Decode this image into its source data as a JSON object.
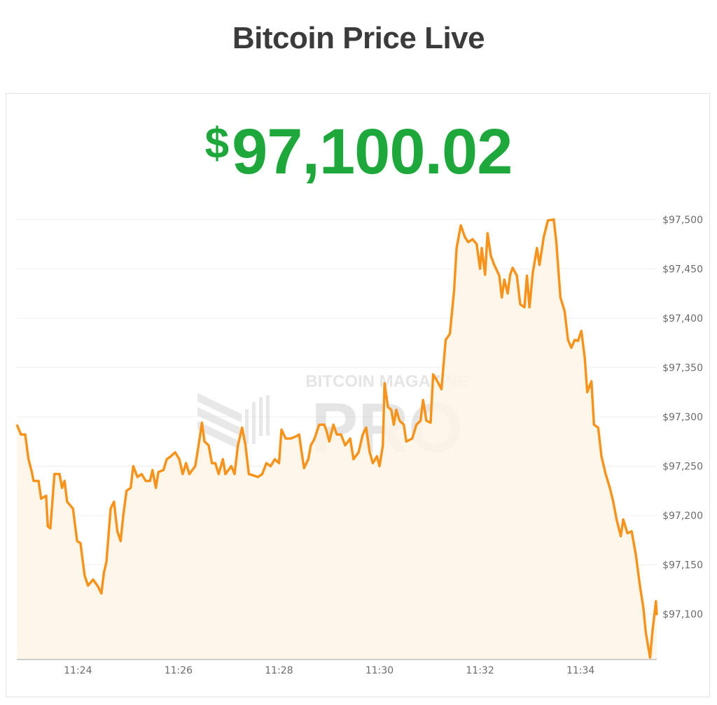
{
  "header": {
    "title": "Bitcoin Price Live"
  },
  "price": {
    "currency_symbol": "$",
    "value": "97,100.02",
    "color": "#1ea83c"
  },
  "watermark": {
    "line1": "BITCOIN MAGAZINE",
    "line2": "PRO"
  },
  "chart_data": {
    "type": "area",
    "title": "",
    "xlabel": "",
    "ylabel": "",
    "line_color": "#f7931a",
    "fill_color": "#fdf5e8",
    "grid": true,
    "legend": "none",
    "xlim": [
      "11:22:47",
      "11:35:31"
    ],
    "ylim": [
      97054,
      97514
    ],
    "x_ticks": [
      "11:24",
      "11:26",
      "11:28",
      "11:30",
      "11:32",
      "11:34"
    ],
    "y_ticks": [
      97100,
      97150,
      97200,
      97250,
      97300,
      97350,
      97400,
      97450,
      97500
    ],
    "y_tick_labels": [
      "$97,100",
      "$97,150",
      "$97,200",
      "$97,250",
      "$97,300",
      "$97,350",
      "$97,400",
      "$97,450",
      "$97,500"
    ],
    "y_axis_position": "right",
    "series": [
      {
        "points": [
          [
            "11:22:47",
            97292
          ],
          [
            "11:22:52",
            97282
          ],
          [
            "11:22:57",
            97282
          ],
          [
            "11:23:01",
            97257
          ],
          [
            "11:23:05",
            97244
          ],
          [
            "11:23:07",
            97235
          ],
          [
            "11:23:13",
            97235
          ],
          [
            "11:23:16",
            97217
          ],
          [
            "11:23:22",
            97220
          ],
          [
            "11:23:24",
            97189
          ],
          [
            "11:23:27",
            97187
          ],
          [
            "11:23:32",
            97242
          ],
          [
            "11:23:38",
            97242
          ],
          [
            "11:23:41",
            97228
          ],
          [
            "11:23:44",
            97235
          ],
          [
            "11:23:47",
            97214
          ],
          [
            "11:23:54",
            97207
          ],
          [
            "11:23:59",
            97174
          ],
          [
            "11:24:03",
            97172
          ],
          [
            "11:24:08",
            97139
          ],
          [
            "11:24:12",
            97129
          ],
          [
            "11:24:18",
            97135
          ],
          [
            "11:24:24",
            97128
          ],
          [
            "11:24:28",
            97121
          ],
          [
            "11:24:31",
            97142
          ],
          [
            "11:24:34",
            97153
          ],
          [
            "11:24:39",
            97207
          ],
          [
            "11:24:43",
            97214
          ],
          [
            "11:24:47",
            97184
          ],
          [
            "11:24:51",
            97174
          ],
          [
            "11:24:54",
            97199
          ],
          [
            "11:24:58",
            97225
          ],
          [
            "11:25:03",
            97228
          ],
          [
            "11:25:06",
            97250
          ],
          [
            "11:25:11",
            97239
          ],
          [
            "11:25:16",
            97242
          ],
          [
            "11:25:21",
            97235
          ],
          [
            "11:25:26",
            97235
          ],
          [
            "11:25:29",
            97246
          ],
          [
            "11:25:33",
            97228
          ],
          [
            "11:25:36",
            97244
          ],
          [
            "11:25:42",
            97246
          ],
          [
            "11:25:46",
            97257
          ],
          [
            "11:25:51",
            97260
          ],
          [
            "11:25:56",
            97264
          ],
          [
            "11:26:01",
            97257
          ],
          [
            "11:26:05",
            97242
          ],
          [
            "11:26:09",
            97253
          ],
          [
            "11:26:13",
            97242
          ],
          [
            "11:26:20",
            97250
          ],
          [
            "11:26:24",
            97271
          ],
          [
            "11:26:28",
            97294
          ],
          [
            "11:26:31",
            97275
          ],
          [
            "11:26:36",
            97271
          ],
          [
            "11:26:40",
            97253
          ],
          [
            "11:26:44",
            97253
          ],
          [
            "11:26:48",
            97242
          ],
          [
            "11:26:53",
            97257
          ],
          [
            "11:26:56",
            97242
          ],
          [
            "11:27:03",
            97250
          ],
          [
            "11:27:07",
            97242
          ],
          [
            "11:27:11",
            97271
          ],
          [
            "11:27:16",
            97289
          ],
          [
            "11:27:20",
            97271
          ],
          [
            "11:27:24",
            97242
          ],
          [
            "11:27:28",
            97241
          ],
          [
            "11:27:35",
            97239
          ],
          [
            "11:27:40",
            97242
          ],
          [
            "11:27:45",
            97253
          ],
          [
            "11:27:50",
            97250
          ],
          [
            "11:27:55",
            97257
          ],
          [
            "11:28:00",
            97253
          ],
          [
            "11:28:03",
            97287
          ],
          [
            "11:28:08",
            97278
          ],
          [
            "11:28:14",
            97278
          ],
          [
            "11:28:20",
            97280
          ],
          [
            "11:28:24",
            97282
          ],
          [
            "11:28:27",
            97264
          ],
          [
            "11:28:30",
            97248
          ],
          [
            "11:28:35",
            97257
          ],
          [
            "11:28:38",
            97271
          ],
          [
            "11:28:42",
            97277
          ],
          [
            "11:28:48",
            97292
          ],
          [
            "11:28:54",
            97292
          ],
          [
            "11:28:57",
            97285
          ],
          [
            "11:29:00",
            97275
          ],
          [
            "11:29:05",
            97292
          ],
          [
            "11:29:09",
            97282
          ],
          [
            "11:29:14",
            97282
          ],
          [
            "11:29:19",
            97271
          ],
          [
            "11:29:25",
            97278
          ],
          [
            "11:29:29",
            97257
          ],
          [
            "11:29:35",
            97264
          ],
          [
            "11:29:40",
            97282
          ],
          [
            "11:29:44",
            97289
          ],
          [
            "11:29:48",
            97265
          ],
          [
            "11:29:52",
            97253
          ],
          [
            "11:29:57",
            97260
          ],
          [
            "11:30:00",
            97250
          ],
          [
            "11:30:04",
            97271
          ],
          [
            "11:30:06",
            97334
          ],
          [
            "11:30:10",
            97310
          ],
          [
            "11:30:14",
            97307
          ],
          [
            "11:30:17",
            97292
          ],
          [
            "11:30:20",
            97307
          ],
          [
            "11:30:24",
            97296
          ],
          [
            "11:30:29",
            97292
          ],
          [
            "11:30:32",
            97275
          ],
          [
            "11:30:39",
            97278
          ],
          [
            "11:30:44",
            97292
          ],
          [
            "11:30:49",
            97296
          ],
          [
            "11:30:52",
            97317
          ],
          [
            "11:30:56",
            97296
          ],
          [
            "11:31:01",
            97294
          ],
          [
            "11:31:04",
            97343
          ],
          [
            "11:31:09",
            97336
          ],
          [
            "11:31:14",
            97328
          ],
          [
            "11:31:19",
            97378
          ],
          [
            "11:31:24",
            97384
          ],
          [
            "11:31:29",
            97428
          ],
          [
            "11:31:32",
            97471
          ],
          [
            "11:31:37",
            97494
          ],
          [
            "11:31:42",
            97482
          ],
          [
            "11:31:46",
            97477
          ],
          [
            "11:31:51",
            97480
          ],
          [
            "11:31:56",
            97475
          ],
          [
            "11:32:00",
            97450
          ],
          [
            "11:32:02",
            97471
          ],
          [
            "11:32:06",
            97444
          ],
          [
            "11:32:09",
            97486
          ],
          [
            "11:32:13",
            97463
          ],
          [
            "11:32:17",
            97454
          ],
          [
            "11:32:23",
            97443
          ],
          [
            "11:32:26",
            97421
          ],
          [
            "11:32:29",
            97439
          ],
          [
            "11:32:33",
            97425
          ],
          [
            "11:32:36",
            97444
          ],
          [
            "11:32:39",
            97451
          ],
          [
            "11:32:44",
            97443
          ],
          [
            "11:32:48",
            97414
          ],
          [
            "11:32:53",
            97411
          ],
          [
            "11:32:56",
            97443
          ],
          [
            "11:32:59",
            97411
          ],
          [
            "11:33:03",
            97446
          ],
          [
            "11:33:08",
            97471
          ],
          [
            "11:33:11",
            97454
          ],
          [
            "11:33:16",
            97482
          ],
          [
            "11:33:21",
            97499
          ],
          [
            "11:33:28",
            97500
          ],
          [
            "11:33:31",
            97478
          ],
          [
            "11:33:36",
            97421
          ],
          [
            "11:33:41",
            97407
          ],
          [
            "11:33:45",
            97378
          ],
          [
            "11:33:49",
            97370
          ],
          [
            "11:33:53",
            97378
          ],
          [
            "11:33:57",
            97377
          ],
          [
            "11:34:01",
            97387
          ],
          [
            "11:34:05",
            97360
          ],
          [
            "11:34:08",
            97325
          ],
          [
            "11:34:13",
            97336
          ],
          [
            "11:34:16",
            97292
          ],
          [
            "11:34:21",
            97289
          ],
          [
            "11:34:25",
            97260
          ],
          [
            "11:34:30",
            97242
          ],
          [
            "11:34:35",
            97228
          ],
          [
            "11:34:39",
            97214
          ],
          [
            "11:34:43",
            97196
          ],
          [
            "11:34:48",
            97179
          ],
          [
            "11:34:51",
            97196
          ],
          [
            "11:34:56",
            97182
          ],
          [
            "11:35:01",
            97184
          ],
          [
            "11:35:06",
            97160
          ],
          [
            "11:35:11",
            97128
          ],
          [
            "11:35:15",
            97106
          ],
          [
            "11:35:18",
            97081
          ],
          [
            "11:35:23",
            97056
          ],
          [
            "11:35:26",
            97084
          ],
          [
            "11:35:30",
            97113
          ],
          [
            "11:35:31",
            97099
          ]
        ]
      }
    ]
  }
}
